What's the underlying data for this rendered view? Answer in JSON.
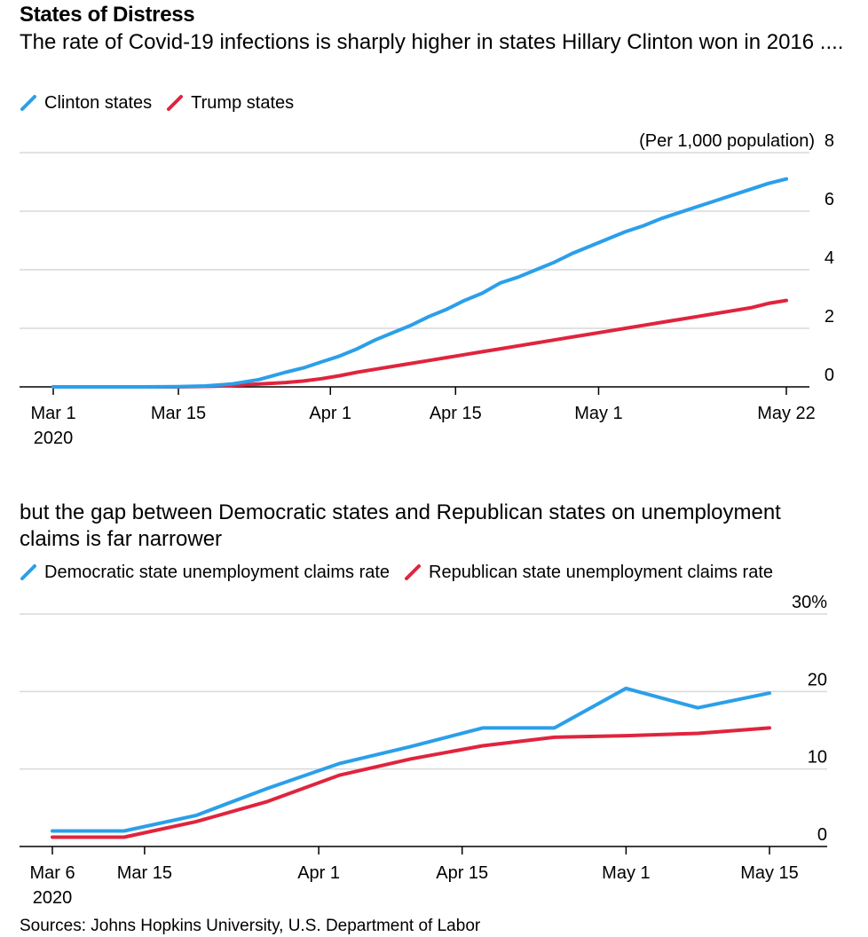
{
  "title": "States of Distress",
  "source": "Sources: Johns Hopkins University, U.S. Department of Labor",
  "colors": {
    "blue": "#2b9fea",
    "red": "#e0243e",
    "grid": "#d9d9d9",
    "axis": "#000000"
  },
  "chart_data": [
    {
      "type": "line",
      "title": "The rate of Covid-19 infections is sharply higher in states Hillary Clinton won in 2016 ....",
      "unit_label": "(Per 1,000 population)",
      "ylim": [
        0,
        8
      ],
      "y_ticks": [
        "0",
        "2",
        "4",
        "6",
        "8"
      ],
      "y_tick_values": [
        0,
        2,
        4,
        6,
        8
      ],
      "x_domain": [
        0,
        82
      ],
      "x_ticks": [
        {
          "label": "Mar 1",
          "sublabel": "2020",
          "day": 0
        },
        {
          "label": "Mar 15",
          "day": 14
        },
        {
          "label": "Apr 1",
          "day": 31
        },
        {
          "label": "Apr 15",
          "day": 45
        },
        {
          "label": "May 1",
          "day": 61
        },
        {
          "label": "May 22",
          "day": 82
        }
      ],
      "x_unit": "days since Mar 1, 2020",
      "series": [
        {
          "name": "Clinton states",
          "color": "#2b9fea",
          "points": [
            [
              0,
              0
            ],
            [
              5,
              0
            ],
            [
              10,
              0
            ],
            [
              14,
              0.01
            ],
            [
              17,
              0.03
            ],
            [
              20,
              0.1
            ],
            [
              23,
              0.25
            ],
            [
              26,
              0.5
            ],
            [
              28,
              0.65
            ],
            [
              30,
              0.85
            ],
            [
              32,
              1.05
            ],
            [
              34,
              1.3
            ],
            [
              36,
              1.6
            ],
            [
              38,
              1.85
            ],
            [
              40,
              2.1
            ],
            [
              42,
              2.4
            ],
            [
              44,
              2.65
            ],
            [
              46,
              2.95
            ],
            [
              48,
              3.2
            ],
            [
              50,
              3.55
            ],
            [
              52,
              3.75
            ],
            [
              54,
              4.0
            ],
            [
              56,
              4.25
            ],
            [
              58,
              4.55
            ],
            [
              60,
              4.8
            ],
            [
              62,
              5.05
            ],
            [
              64,
              5.3
            ],
            [
              66,
              5.5
            ],
            [
              68,
              5.75
            ],
            [
              70,
              5.95
            ],
            [
              72,
              6.15
            ],
            [
              74,
              6.35
            ],
            [
              76,
              6.55
            ],
            [
              78,
              6.75
            ],
            [
              80,
              6.95
            ],
            [
              82,
              7.1
            ]
          ]
        },
        {
          "name": "Trump states",
          "color": "#e0243e",
          "points": [
            [
              0,
              0
            ],
            [
              10,
              0
            ],
            [
              14,
              0
            ],
            [
              18,
              0.02
            ],
            [
              22,
              0.08
            ],
            [
              26,
              0.15
            ],
            [
              28,
              0.2
            ],
            [
              30,
              0.28
            ],
            [
              32,
              0.38
            ],
            [
              34,
              0.5
            ],
            [
              36,
              0.6
            ],
            [
              38,
              0.7
            ],
            [
              40,
              0.8
            ],
            [
              42,
              0.9
            ],
            [
              44,
              1.0
            ],
            [
              46,
              1.1
            ],
            [
              48,
              1.2
            ],
            [
              50,
              1.3
            ],
            [
              52,
              1.4
            ],
            [
              54,
              1.5
            ],
            [
              56,
              1.6
            ],
            [
              58,
              1.7
            ],
            [
              60,
              1.8
            ],
            [
              62,
              1.9
            ],
            [
              64,
              2.0
            ],
            [
              66,
              2.1
            ],
            [
              68,
              2.2
            ],
            [
              70,
              2.3
            ],
            [
              72,
              2.4
            ],
            [
              74,
              2.5
            ],
            [
              76,
              2.6
            ],
            [
              78,
              2.7
            ],
            [
              80,
              2.85
            ],
            [
              82,
              2.95
            ]
          ]
        }
      ]
    },
    {
      "type": "line",
      "title": "but the gap between Democratic states and Republican states on unemployment claims is far narrower",
      "ylim": [
        0,
        30
      ],
      "y_ticks": [
        "0",
        "10",
        "20",
        "30%"
      ],
      "y_tick_values": [
        0,
        10,
        20,
        30
      ],
      "x_domain": [
        0,
        70
      ],
      "x_ticks": [
        {
          "label": "Mar 6",
          "sublabel": "2020",
          "day": 0
        },
        {
          "label": "Mar 15",
          "day": 9
        },
        {
          "label": "Apr 1",
          "day": 26
        },
        {
          "label": "Apr 15",
          "day": 40
        },
        {
          "label": "May 1",
          "day": 56
        },
        {
          "label": "May 15",
          "day": 70
        }
      ],
      "x_unit": "days since Mar 6, 2020",
      "series": [
        {
          "name": "Democratic state unemployment claims rate",
          "color": "#2b9fea",
          "points": [
            [
              0,
              2
            ],
            [
              7,
              2
            ],
            [
              14,
              4
            ],
            [
              21,
              7.5
            ],
            [
              28,
              10.7
            ],
            [
              35,
              12.9
            ],
            [
              42,
              15.3
            ],
            [
              49,
              15.3
            ],
            [
              56,
              20.4
            ],
            [
              63,
              17.9
            ],
            [
              70,
              19.8
            ]
          ]
        },
        {
          "name": "Republican state unemployment claims rate",
          "color": "#e0243e",
          "points": [
            [
              0,
              1.2
            ],
            [
              7,
              1.2
            ],
            [
              14,
              3.2
            ],
            [
              21,
              5.8
            ],
            [
              28,
              9.2
            ],
            [
              35,
              11.3
            ],
            [
              42,
              13
            ],
            [
              49,
              14.1
            ],
            [
              56,
              14.3
            ],
            [
              63,
              14.6
            ],
            [
              70,
              15.3
            ]
          ]
        }
      ]
    }
  ]
}
